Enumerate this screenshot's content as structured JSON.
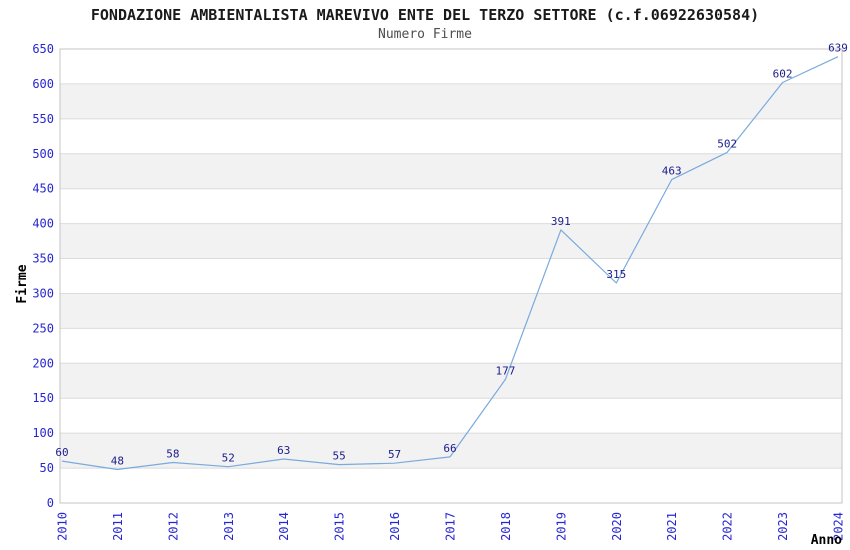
{
  "chart_data": {
    "type": "line",
    "title": "FONDAZIONE AMBIENTALISTA MAREVIVO ENTE DEL TERZO SETTORE (c.f.06922630584)",
    "subtitle": "Numero Firme",
    "xlabel": "Anno",
    "ylabel": "Firme",
    "categories": [
      "2010",
      "2011",
      "2012",
      "2013",
      "2014",
      "2015",
      "2016",
      "2017",
      "2018",
      "2019",
      "2020",
      "2021",
      "2022",
      "2023",
      "2024"
    ],
    "values": [
      60,
      48,
      58,
      52,
      63,
      55,
      57,
      66,
      177,
      391,
      315,
      463,
      502,
      602,
      639
    ],
    "ylim": [
      0,
      650
    ],
    "ytick_step": 50,
    "grid": true,
    "bands_alternating": true,
    "legend": false,
    "colors": {
      "line": "#7AAADE",
      "tick_label": "#2727D2",
      "point_label": "#1C1C8C",
      "band_light": "#FFFFFF",
      "band_dark": "#F2F2F2",
      "gridline": "#DBDBDB",
      "border": "#C4C4C4",
      "title": "#1A1A1A",
      "subtitle": "#4D4D4D",
      "axis_label": "#000000"
    }
  }
}
